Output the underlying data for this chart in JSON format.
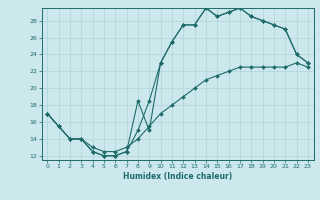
{
  "xlabel": "Humidex (Indice chaleur)",
  "xlim": [
    -0.5,
    23.5
  ],
  "ylim": [
    11.5,
    29.5
  ],
  "xticks": [
    0,
    1,
    2,
    3,
    4,
    5,
    6,
    7,
    8,
    9,
    10,
    11,
    12,
    13,
    14,
    15,
    16,
    17,
    18,
    19,
    20,
    21,
    22,
    23
  ],
  "yticks": [
    12,
    14,
    16,
    18,
    20,
    22,
    24,
    26,
    28
  ],
  "bg_color": "#cce8ec",
  "line_color": "#1e6b6b",
  "grid_color": "#afd4d8",
  "line1_x": [
    0,
    1,
    2,
    3,
    4,
    5,
    6,
    7,
    8,
    9,
    10,
    11,
    12,
    13,
    14,
    15,
    16,
    17,
    18,
    19,
    20,
    21,
    22,
    23
  ],
  "line1_y": [
    17,
    15.5,
    14,
    14,
    12.5,
    12,
    12,
    12.5,
    18.5,
    15,
    23,
    25.5,
    27.5,
    27.5,
    29.5,
    28.5,
    29,
    29.5,
    28.5,
    28,
    27.5,
    27,
    24,
    23
  ],
  "line2_x": [
    0,
    1,
    2,
    3,
    4,
    5,
    6,
    7,
    8,
    9,
    10,
    11,
    12,
    13,
    14,
    15,
    16,
    17,
    18,
    19,
    20,
    21,
    22,
    23
  ],
  "line2_y": [
    17,
    15.5,
    14,
    14,
    12.5,
    12,
    12,
    12.5,
    15,
    18.5,
    23,
    25.5,
    27.5,
    27.5,
    29.5,
    28.5,
    29,
    29.5,
    28.5,
    28,
    27.5,
    27,
    24,
    23
  ],
  "line3_x": [
    0,
    1,
    2,
    3,
    4,
    5,
    6,
    7,
    8,
    9,
    10,
    11,
    12,
    13,
    14,
    15,
    16,
    17,
    18,
    19,
    20,
    21,
    22,
    23
  ],
  "line3_y": [
    17,
    15.5,
    14,
    14,
    13,
    12.5,
    12.5,
    13,
    14,
    15.5,
    17,
    18,
    19,
    20,
    21,
    21.5,
    22,
    22.5,
    22.5,
    22.5,
    22.5,
    22.5,
    23,
    22.5
  ]
}
